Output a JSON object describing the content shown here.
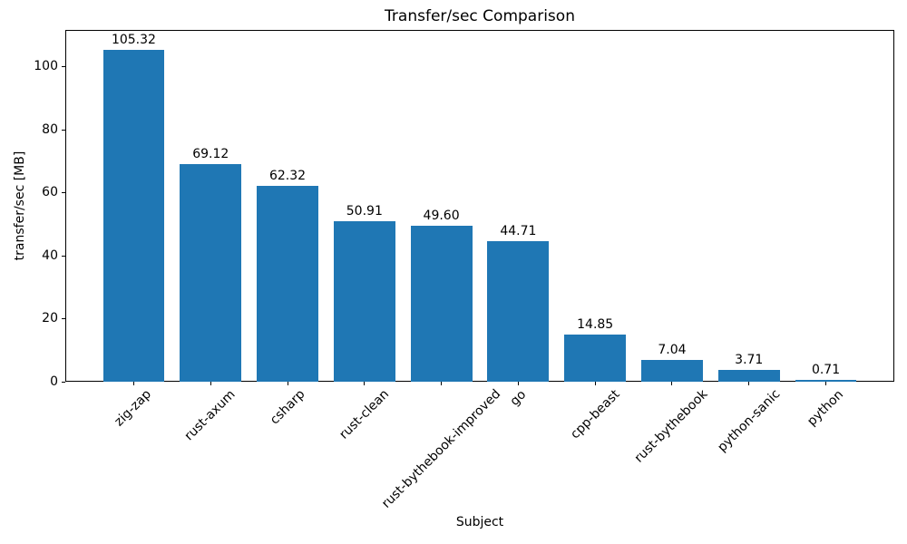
{
  "chart_data": {
    "type": "bar",
    "title": "Transfer/sec Comparison",
    "xlabel": "Subject",
    "ylabel": "transfer/sec [MB]",
    "categories": [
      "zig-zap",
      "rust-axum",
      "csharp",
      "rust-clean",
      "rust-bythebook-improved",
      "go",
      "cpp-beast",
      "rust-bythebook",
      "python-sanic",
      "python"
    ],
    "values": [
      105.32,
      69.12,
      62.32,
      50.91,
      49.6,
      44.71,
      14.85,
      7.04,
      3.71,
      0.71
    ],
    "value_labels": [
      "105.32",
      "69.12",
      "62.32",
      "50.91",
      "49.60",
      "44.71",
      "14.85",
      "7.04",
      "3.71",
      "0.71"
    ],
    "yticks": [
      0,
      20,
      40,
      60,
      80,
      100
    ],
    "ylim": [
      0,
      111.8
    ],
    "bar_color": "#1f77b4",
    "grid": false,
    "legend": "none",
    "tick_label_rotation_deg": 45
  }
}
